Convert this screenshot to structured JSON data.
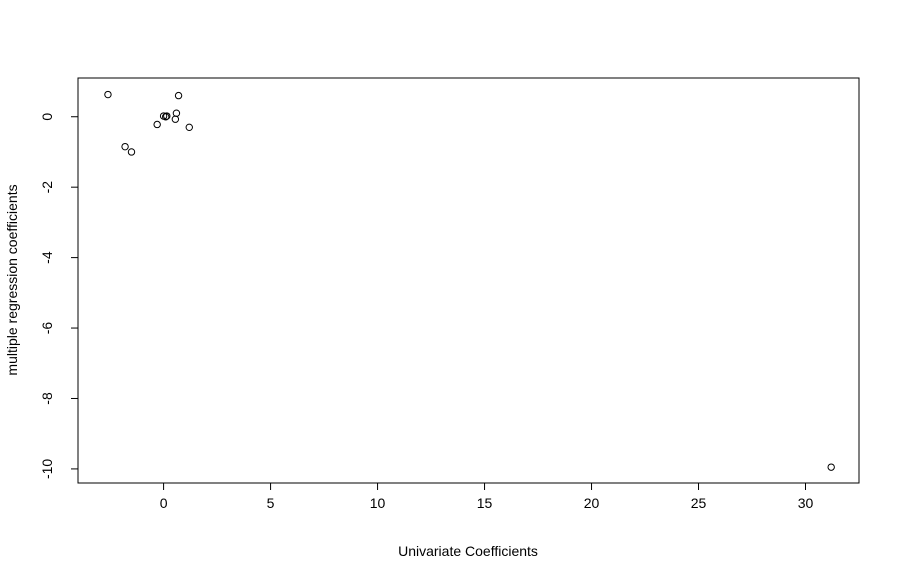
{
  "chart_data": {
    "type": "scatter",
    "title": "",
    "xlabel": "Univariate Coefficients",
    "ylabel": "multiple regression coefficients",
    "xlim": [
      -4,
      32.5
    ],
    "ylim": [
      -10.4,
      1.1
    ],
    "xticks": [
      0,
      5,
      10,
      15,
      20,
      25,
      30
    ],
    "yticks": [
      0,
      -2,
      -4,
      -6,
      -8,
      -10
    ],
    "grid": false,
    "legend": "none",
    "marker": "open-circle",
    "color": "#000000",
    "series": [
      {
        "points": [
          {
            "x": -2.6,
            "y": 0.63
          },
          {
            "x": -1.8,
            "y": -0.85
          },
          {
            "x": -1.5,
            "y": -1.0
          },
          {
            "x": -0.3,
            "y": -0.22
          },
          {
            "x": 0.0,
            "y": 0.02
          },
          {
            "x": 0.1,
            "y": 0.0
          },
          {
            "x": 0.15,
            "y": 0.02
          },
          {
            "x": 0.55,
            "y": -0.07
          },
          {
            "x": 0.6,
            "y": 0.1
          },
          {
            "x": 0.7,
            "y": 0.6
          },
          {
            "x": 1.2,
            "y": -0.3
          },
          {
            "x": 31.2,
            "y": -9.95
          }
        ]
      }
    ]
  }
}
